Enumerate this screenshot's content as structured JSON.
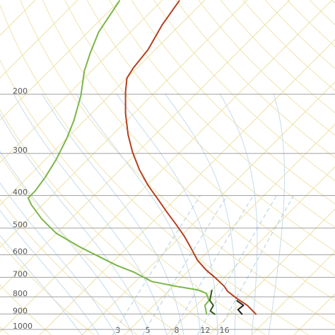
{
  "chart_data": {
    "type": "skewt",
    "ylim": [
      1039,
      105
    ],
    "ylog": true,
    "yticks": [
      200,
      300,
      400,
      500,
      600,
      700,
      800,
      900,
      1000
    ],
    "mixing_ratio_lines": [
      3,
      5,
      8,
      12,
      16
    ],
    "series": [
      {
        "color": "#b5401f",
        "x": [
          26.3,
          22,
          17.8,
          14,
          12.1,
          8,
          4,
          -0.4,
          -5,
          -8.9,
          -13.7,
          -18.9,
          -23.7,
          -29.7,
          -35.4,
          -41.2,
          -46.4,
          -52,
          -57,
          -60,
          -60.9,
          -61.7,
          -64.2,
          -65.9
        ],
        "values": [
          903.6,
          848.5,
          808.5,
          770.4,
          744.8,
          702.8,
          666.4,
          622.9,
          571,
          531,
          489.2,
          448.5,
          413.1,
          373.3,
          335.6,
          297.4,
          263.6,
          228.1,
          197.3,
          179.1,
          166.6,
          147.6,
          124.7,
          105.3
        ]
      },
      {
        "color": "#222222",
        "x": [
          18.3,
          21.1,
          20.8,
          23
        ],
        "values": [
          820.4,
          848.5,
          873.5,
          903.6
        ]
      },
      {
        "color": "#7ab648",
        "x": [
          14.6,
          12,
          11.8,
          9.5,
          6.6,
          0.8,
          -6.2,
          -12.5,
          -18.4,
          -23.4,
          -30.9,
          -40,
          -41.7,
          -46.7,
          -52.5,
          -55,
          -55,
          -55.9,
          -57.5,
          -60,
          -62.5,
          -66.7,
          -71.7,
          -74.5,
          -77.5,
          -80
        ],
        "values": [
          903.6,
          848.5,
          820.4,
          781.6,
          763,
          744.8,
          720,
          676.2,
          644.3,
          614,
          571,
          518.4,
          506,
          470.7,
          427.3,
          407.1,
          387.9,
          352.2,
          312.2,
          270,
          239.3,
          202.1,
          170.7,
          151.3,
          130.8,
          105.3
        ]
      },
      {
        "color": "#2f5a1e",
        "x": [
          10,
          12,
          14,
          14.6,
          16.6
        ],
        "values": [
          763,
          820.4,
          848.5,
          882,
          903.6
        ]
      }
    ]
  }
}
